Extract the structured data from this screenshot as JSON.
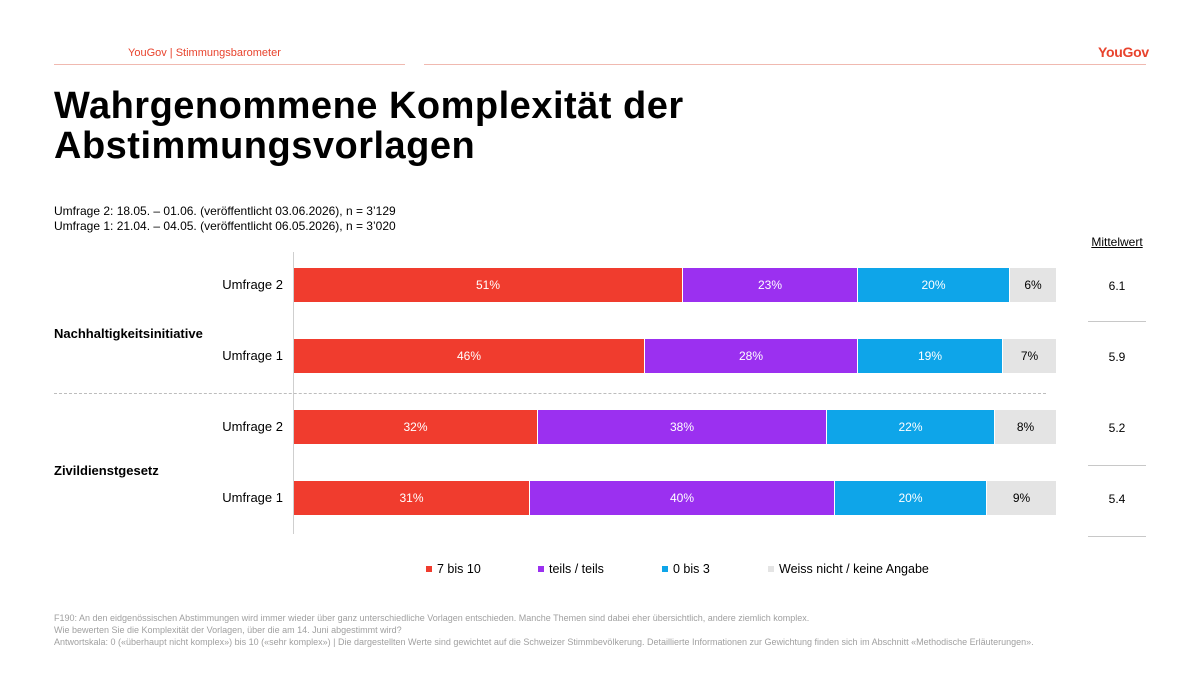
{
  "header": {
    "brand_line": "YouGov | Stimmungsbarometer",
    "logo_text": "YouGov"
  },
  "title_line1": "Wahrgenommene Komplexität der",
  "title_line2": "Abstimmungsvorlagen",
  "subtitle": {
    "line1": "Umfrage 2: 18.05. – 01.06. (veröffentlicht 03.06.2026), n = 3’129",
    "line2": "Umfrage 1: 21.04. – 04.05. (veröffentlicht 06.05.2026), n = 3’020"
  },
  "mean_header": "Mittelwert",
  "footer": {
    "line1": "F190: An den eidgenössischen Abstimmungen wird immer wieder über ganz unterschiedliche Vorlagen entschieden. Manche Themen sind dabei eher übersichtlich, andere ziemlich komplex.",
    "line2": "Wie bewerten Sie die Komplexität der Vorlagen, über die am 14. Juni abgestimmt wird?",
    "line3": "Antwortskala: 0 («überhaupt nicht komplex») bis 10 («sehr komplex») | Die dargestellten Werte sind gewichtet auf die Schweizer Stimmbevölkerung. Detaillierte Informationen zur Gewichtung finden sich im Abschnitt «Methodische Erläuterungen»."
  },
  "chart_data": {
    "type": "bar",
    "orientation": "horizontal",
    "stacked": true,
    "unit": "%",
    "legend_position": "bottom",
    "groups": [
      {
        "name": "Nachhaltigkeitsinitiative",
        "rows": [
          {
            "label": "Umfrage 2",
            "values": [
              51,
              23,
              20,
              6
            ],
            "mean": "6.1"
          },
          {
            "label": "Umfrage 1",
            "values": [
              46,
              28,
              19,
              7
            ],
            "mean": "5.9"
          }
        ]
      },
      {
        "name": "Zivildienstgesetz",
        "rows": [
          {
            "label": "Umfrage 2",
            "values": [
              32,
              38,
              22,
              8
            ],
            "mean": "5.2"
          },
          {
            "label": "Umfrage 1",
            "values": [
              31,
              40,
              20,
              9
            ],
            "mean": "5.4"
          }
        ]
      }
    ],
    "series": [
      {
        "name": "7 bis 10",
        "color": "#f03c2e",
        "text_color": "#ffffff"
      },
      {
        "name": "teils / teils",
        "color": "#9b30f0",
        "text_color": "#ffffff"
      },
      {
        "name": "0 bis 3",
        "color": "#0ea5e9",
        "text_color": "#ffffff"
      },
      {
        "name": "Weiss nicht / keine Angabe",
        "color": "#e4e4e4",
        "text_color": "#000000"
      }
    ]
  }
}
